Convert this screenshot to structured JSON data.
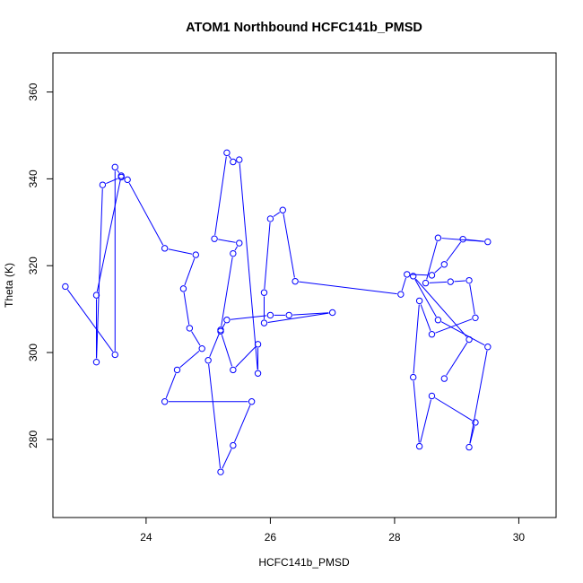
{
  "chart_data": {
    "type": "line",
    "title": "ATOM1 Northbound HCFC141b_PMSD",
    "xlabel": "HCFC141b_PMSD",
    "ylabel": "Theta (K)",
    "xlim": [
      22.5,
      30.6
    ],
    "ylim": [
      262,
      369
    ],
    "xticks": [
      24,
      26,
      28,
      30
    ],
    "yticks": [
      280,
      300,
      320,
      340,
      360
    ],
    "grid": false,
    "color": "#0000ff",
    "series": [
      {
        "markers": "open-circle",
        "points": [
          [
            22.7,
            315.2
          ],
          [
            23.5,
            299.5
          ],
          [
            23.5,
            342.7
          ],
          [
            23.6,
            340.7
          ],
          [
            23.2,
            313.2
          ],
          [
            23.2,
            297.8
          ],
          [
            23.3,
            338.6
          ],
          [
            23.6,
            340.4
          ],
          [
            23.7,
            339.8
          ],
          [
            24.3,
            324.0
          ],
          [
            24.8,
            322.5
          ],
          [
            24.6,
            314.7
          ],
          [
            24.7,
            305.6
          ],
          [
            24.9,
            300.9
          ],
          [
            24.5,
            296.0
          ],
          [
            24.3,
            288.7
          ],
          [
            25.7,
            288.7
          ],
          [
            25.4,
            278.6
          ],
          [
            25.2,
            272.5
          ],
          [
            25.0,
            298.2
          ],
          [
            25.2,
            305.2
          ],
          [
            25.4,
            322.8
          ],
          [
            25.5,
            325.2
          ],
          [
            25.1,
            326.2
          ],
          [
            25.3,
            346.0
          ],
          [
            25.4,
            343.9
          ],
          [
            25.5,
            344.4
          ],
          [
            25.8,
            295.2
          ],
          [
            25.8,
            301.9
          ],
          [
            25.4,
            296.0
          ],
          [
            25.2,
            304.9
          ],
          [
            25.3,
            307.5
          ],
          [
            26.0,
            308.6
          ],
          [
            26.3,
            308.6
          ],
          [
            27.0,
            309.2
          ],
          [
            25.9,
            306.8
          ],
          [
            25.9,
            313.8
          ],
          [
            26.0,
            330.8
          ],
          [
            26.2,
            332.8
          ],
          [
            26.4,
            316.4
          ],
          [
            28.1,
            313.4
          ],
          [
            28.2,
            318.0
          ],
          [
            28.6,
            317.8
          ],
          [
            28.8,
            320.3
          ],
          [
            29.1,
            326.1
          ],
          [
            29.5,
            325.5
          ],
          [
            28.7,
            326.4
          ],
          [
            28.5,
            316.0
          ],
          [
            28.9,
            316.3
          ],
          [
            29.2,
            316.6
          ],
          [
            29.3,
            308.0
          ],
          [
            28.6,
            304.2
          ],
          [
            28.4,
            311.9
          ],
          [
            28.3,
            294.3
          ],
          [
            28.4,
            278.4
          ],
          [
            28.6,
            290.0
          ],
          [
            29.3,
            283.9
          ],
          [
            29.2,
            278.2
          ],
          [
            29.5,
            301.3
          ],
          [
            28.7,
            307.5
          ],
          [
            28.3,
            317.6
          ],
          [
            29.2,
            303.0
          ],
          [
            28.8,
            294.0
          ]
        ]
      }
    ]
  }
}
